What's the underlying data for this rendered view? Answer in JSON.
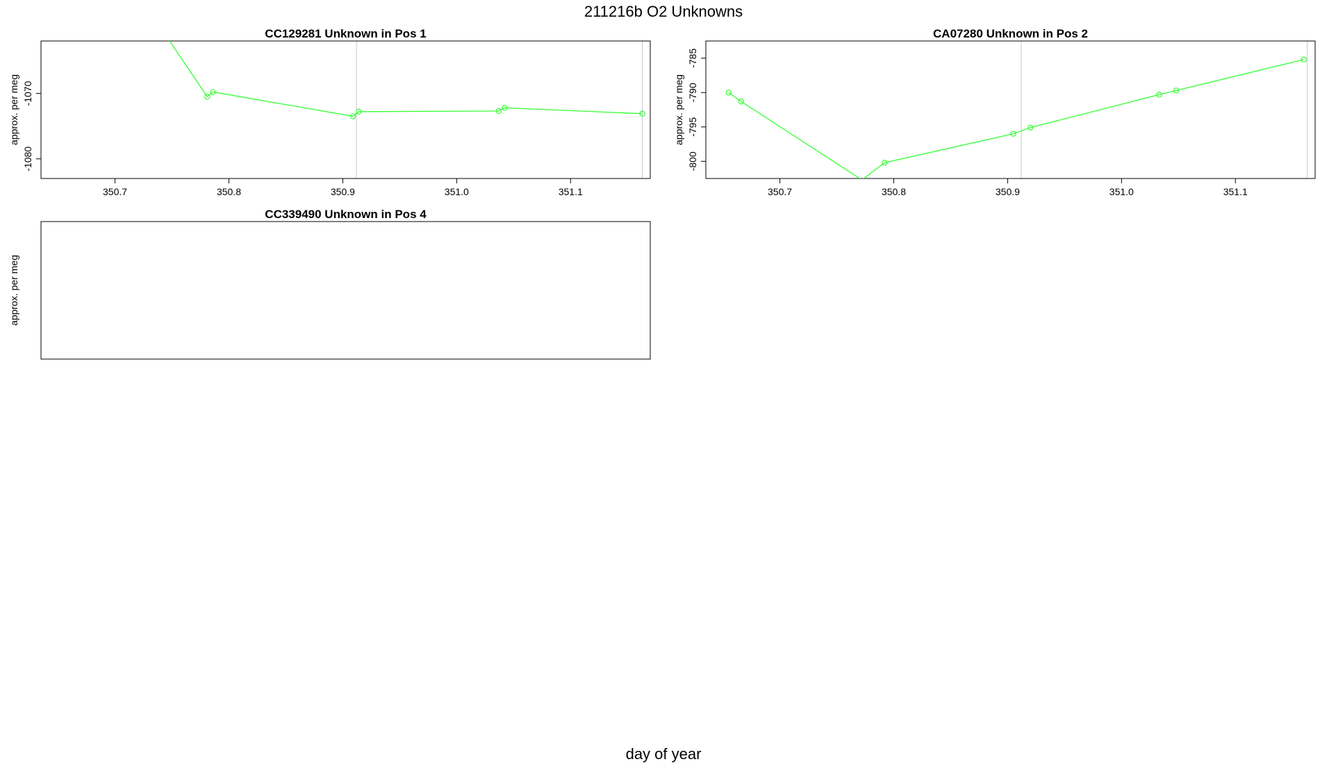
{
  "figure": {
    "title": "211216b  O2 Unknowns",
    "xlabel": "day of year"
  },
  "colors": {
    "series": "#33ff33",
    "refline": "#c8c8c8",
    "frame": "#000000"
  },
  "chart_data": [
    {
      "type": "line",
      "id_label": "CC129281",
      "title": "Unknown in Pos 1",
      "ylabel": "approx. per meg",
      "xlim": [
        350.635,
        351.17
      ],
      "ylim": [
        -1083,
        -1062
      ],
      "xticks": [
        350.7,
        350.8,
        350.9,
        351.0,
        351.1
      ],
      "yticks": [
        -1070,
        -1080
      ],
      "vlines": [
        350.912,
        351.163
      ],
      "series": [
        {
          "x": [
            350.744,
            350.781,
            350.786,
            350.909,
            350.914,
            351.037,
            351.042,
            351.163
          ],
          "y": [
            -1061,
            -1070.5,
            -1069.8,
            -1073.5,
            -1072.8,
            -1072.7,
            -1072.2,
            -1073.1
          ]
        }
      ]
    },
    {
      "type": "line",
      "id_label": "CA07280",
      "title": "Unknown in Pos 2",
      "ylabel": "approx. per meg",
      "xlim": [
        350.635,
        351.17
      ],
      "ylim": [
        -802.5,
        -782.5
      ],
      "xticks": [
        350.7,
        350.8,
        350.9,
        351.0,
        351.1
      ],
      "yticks": [
        -785,
        -790,
        -795,
        -800
      ],
      "vlines": [
        350.912,
        351.163
      ],
      "series": [
        {
          "x": [
            350.655,
            350.666,
            350.772,
            350.792,
            350.905,
            350.92,
            351.033,
            351.048,
            351.16
          ],
          "y": [
            -790.0,
            -791.3,
            -802.7,
            -800.2,
            -796.0,
            -795.1,
            -790.3,
            -789.7,
            -785.2
          ]
        }
      ]
    },
    {
      "type": "line",
      "id_label": "CC339490",
      "title": "Unknown in Pos 4",
      "ylabel": "approx. per meg",
      "xlim": [
        350.635,
        351.17
      ],
      "ylim": [
        -838,
        -818
      ]
    }
  ]
}
